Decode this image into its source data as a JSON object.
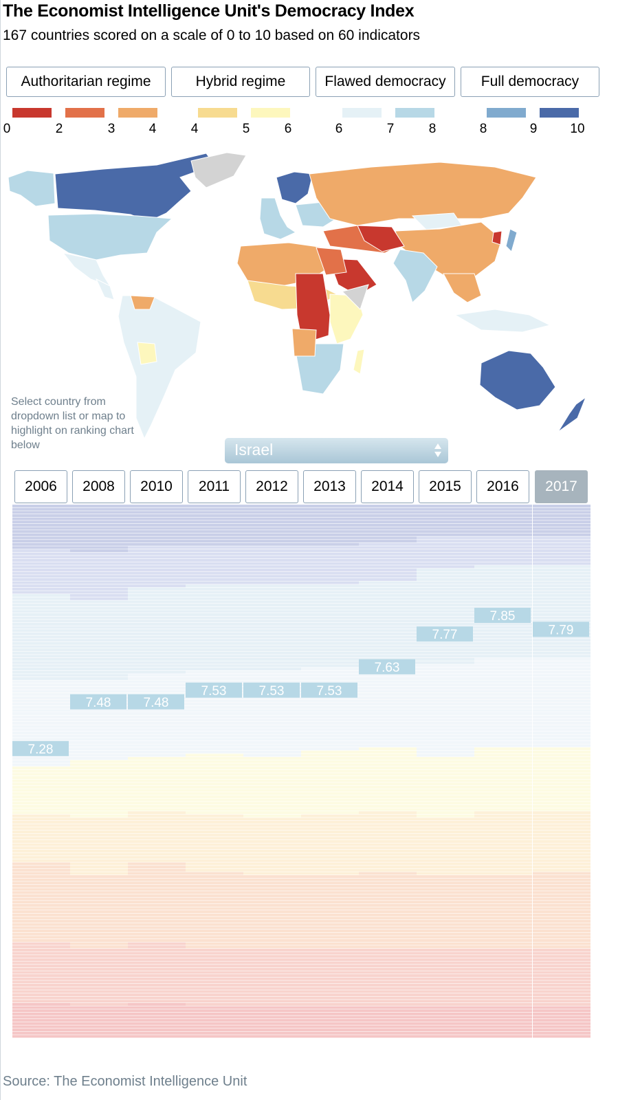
{
  "header": {
    "title": "The Economist Intelligence Unit's Democracy Index",
    "subtitle": "167 countries scored on a scale of 0 to 10 based on 60 indicators"
  },
  "categories": [
    {
      "label": "Authoritarian regime"
    },
    {
      "label": "Hybrid regime"
    },
    {
      "label": "Flawed democracy"
    },
    {
      "label": "Full democracy"
    }
  ],
  "legend": {
    "bins": [
      {
        "color": "#c8382e"
      },
      {
        "color": "#e27149"
      },
      {
        "color": "#efaa69"
      },
      {
        "color": "#f7db90"
      },
      {
        "color": "#fdf7bd"
      },
      {
        "color": "#e5f1f6"
      },
      {
        "color": "#b7d8e6"
      },
      {
        "color": "#80aace"
      },
      {
        "color": "#4a6aa8"
      }
    ],
    "ticks": [
      "0",
      "2",
      "3",
      "4",
      "4",
      "5",
      "6",
      "6",
      "7",
      "8",
      "8",
      "9",
      "10"
    ]
  },
  "map_colors": {
    "ocean": "#ffffff",
    "no_data": "#d3d3d3"
  },
  "hint": "Select country from dropdown list or map to highlight on ranking chart below",
  "dropdown": {
    "selected": "Israel"
  },
  "years": [
    "2006",
    "2008",
    "2010",
    "2011",
    "2012",
    "2013",
    "2014",
    "2015",
    "2016",
    "2017"
  ],
  "active_year": "2017",
  "source": "Source: The Economist Intelligence Unit",
  "chart_data": {
    "type": "table",
    "title": "The Economist Intelligence Unit's Democracy Index",
    "highlighted_country": "Israel",
    "x": [
      "2006",
      "2008",
      "2010",
      "2011",
      "2012",
      "2013",
      "2014",
      "2015",
      "2016",
      "2017"
    ],
    "series": [
      {
        "name": "Israel",
        "values": [
          7.28,
          7.48,
          7.48,
          7.53,
          7.53,
          7.53,
          7.63,
          7.77,
          7.85,
          7.79
        ]
      }
    ],
    "ylim": [
      0,
      10
    ],
    "countries_per_year": 167
  }
}
